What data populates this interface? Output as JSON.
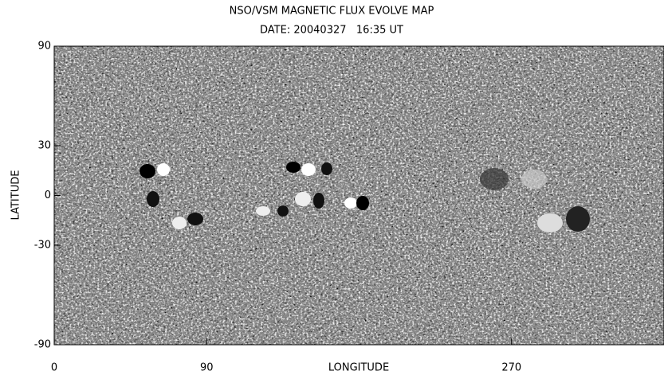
{
  "chart_data": {
    "type": "image",
    "title": "NSO/VSM MAGNETIC FLUX EVOLVE MAP",
    "subtitle": "DATE: 20040327   16:35 UT",
    "xlabel": "LONGITUDE",
    "ylabel": "LATITUDE",
    "xlim": [
      0,
      360
    ],
    "ylim": [
      -90,
      90
    ],
    "xticks": [
      0,
      90,
      270
    ],
    "yticks": [
      -90,
      -30,
      0,
      30,
      90
    ]
  }
}
